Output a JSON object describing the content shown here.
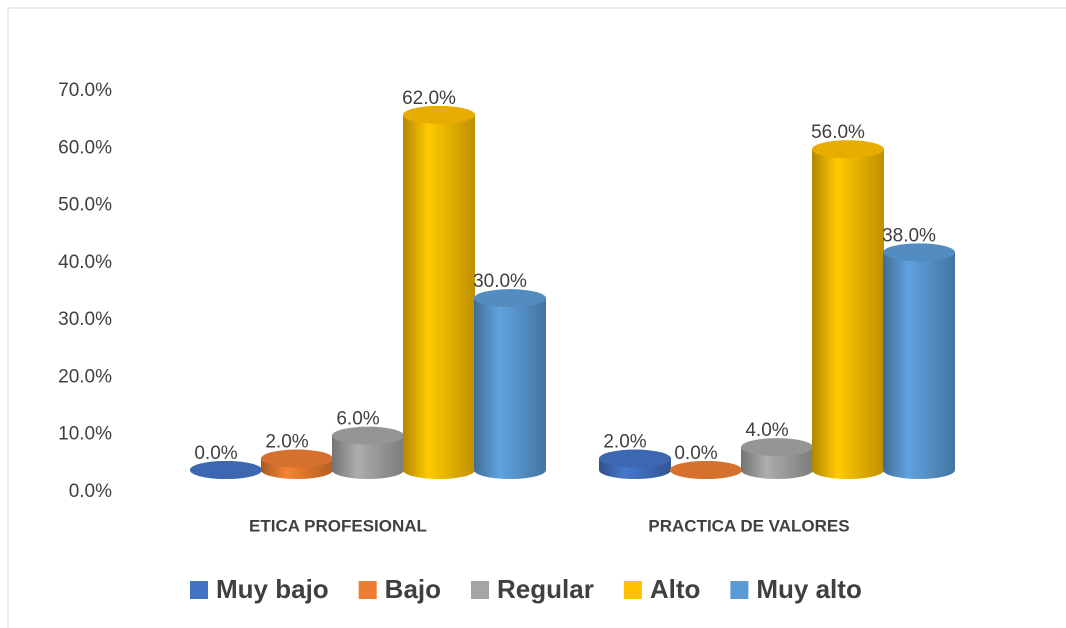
{
  "chart_data": {
    "type": "bar3d",
    "categories": [
      "ETICA PROFESIONAL",
      "PRACTICA DE VALORES"
    ],
    "series": [
      {
        "name": "Muy bajo",
        "color": "#4472c4",
        "values": [
          0,
          2
        ],
        "value_labels": [
          "0.0%",
          "2.0%"
        ]
      },
      {
        "name": "Bajo",
        "color": "#ed7d31",
        "values": [
          2,
          0
        ],
        "value_labels": [
          "2.0%",
          "0.0%"
        ]
      },
      {
        "name": "Regular",
        "color": "#a5a5a5",
        "values": [
          6,
          4
        ],
        "value_labels": [
          "6.0%",
          "4.0%"
        ]
      },
      {
        "name": "Alto",
        "color": "#ffc000",
        "values": [
          62,
          56
        ],
        "value_labels": [
          "62.0%",
          "56.0%"
        ]
      },
      {
        "name": "Muy alto",
        "color": "#5b9bd5",
        "values": [
          30,
          38
        ],
        "value_labels": [
          "30.0%",
          "38.0%"
        ]
      }
    ],
    "ylim": [
      0,
      70
    ],
    "yticks": [
      {
        "value": 0,
        "label": "0.0%"
      },
      {
        "value": 10,
        "label": "10.0%"
      },
      {
        "value": 20,
        "label": "20.0%"
      },
      {
        "value": 30,
        "label": "30.0%"
      },
      {
        "value": 40,
        "label": "40.0%"
      },
      {
        "value": 50,
        "label": "50.0%"
      },
      {
        "value": 60,
        "label": "60.0%"
      },
      {
        "value": 70,
        "label": "70.0%"
      }
    ],
    "legend": "bottom"
  }
}
